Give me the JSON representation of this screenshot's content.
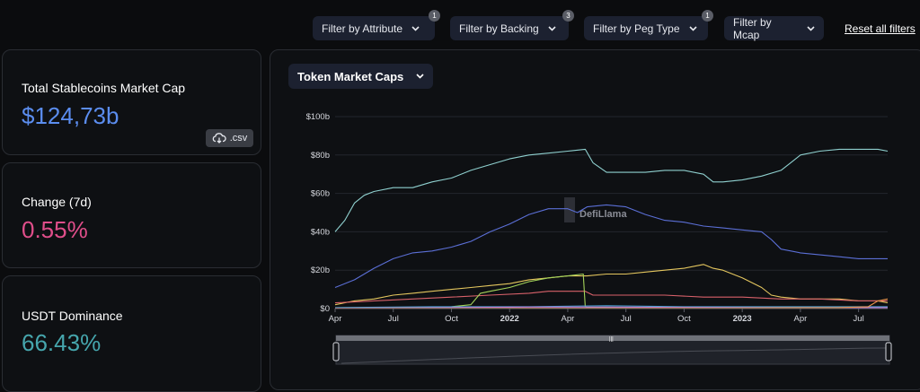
{
  "filters": [
    {
      "label": "Filter by Attribute",
      "badge": "1"
    },
    {
      "label": "Filter by Backing",
      "badge": "3"
    },
    {
      "label": "Filter by Peg Type",
      "badge": "1"
    },
    {
      "label": "Filter by Mcap",
      "badge": ""
    }
  ],
  "reset_label": "Reset all filters",
  "cards": {
    "total": {
      "label": "Total Stablecoins Market Cap",
      "value": "$124,73b",
      "csv_label": ".csv",
      "value_color": "#5b8def"
    },
    "change": {
      "label": "Change (7d)",
      "value": "0.55%",
      "value_color": "#e04e8a"
    },
    "dominance": {
      "label": "USDT Dominance",
      "value": "66.43%",
      "value_color": "#46a6ad"
    }
  },
  "chart_select_label": "Token Market Caps",
  "watermark": "DefiLlama",
  "chart_data": {
    "type": "line",
    "title": "Token Market Caps",
    "x_ticks": [
      {
        "label": "Apr",
        "bold": false
      },
      {
        "label": "Jul",
        "bold": false
      },
      {
        "label": "Oct",
        "bold": false
      },
      {
        "label": "2022",
        "bold": true
      },
      {
        "label": "Apr",
        "bold": false
      },
      {
        "label": "Jul",
        "bold": false
      },
      {
        "label": "Oct",
        "bold": false
      },
      {
        "label": "2023",
        "bold": true
      },
      {
        "label": "Apr",
        "bold": false
      },
      {
        "label": "Jul",
        "bold": false
      }
    ],
    "x_range": [
      "2021-04",
      "2023-08"
    ],
    "y_ticks": [
      "$0",
      "$20b",
      "$40b",
      "$60b",
      "$80b",
      "$100b"
    ],
    "ylim": [
      0,
      100
    ],
    "grid": true,
    "series": [
      {
        "color": "#8fd0cf",
        "values": [
          [
            0,
            40
          ],
          [
            0.5,
            46
          ],
          [
            1,
            55
          ],
          [
            1.5,
            59
          ],
          [
            2,
            61
          ],
          [
            3,
            63
          ],
          [
            4,
            63
          ],
          [
            5,
            66
          ],
          [
            6,
            68
          ],
          [
            7,
            72
          ],
          [
            8,
            75
          ],
          [
            9,
            78
          ],
          [
            10,
            80
          ],
          [
            11,
            81
          ],
          [
            12,
            82
          ],
          [
            12.9,
            83
          ],
          [
            13.3,
            76
          ],
          [
            14,
            71
          ],
          [
            15,
            71
          ],
          [
            16,
            71
          ],
          [
            17,
            72
          ],
          [
            18,
            72
          ],
          [
            19,
            70
          ],
          [
            19.5,
            66
          ],
          [
            20,
            66
          ],
          [
            21,
            67
          ],
          [
            22,
            69
          ],
          [
            23,
            72
          ],
          [
            23.5,
            76
          ],
          [
            24,
            80
          ],
          [
            25,
            82
          ],
          [
            26,
            83
          ],
          [
            27,
            83
          ],
          [
            28,
            83
          ],
          [
            28.5,
            82
          ]
        ]
      },
      {
        "color": "#5b6fd6",
        "values": [
          [
            0,
            11
          ],
          [
            1,
            15
          ],
          [
            2,
            21
          ],
          [
            3,
            26
          ],
          [
            4,
            29
          ],
          [
            5,
            30
          ],
          [
            6,
            32
          ],
          [
            7,
            35
          ],
          [
            8,
            40
          ],
          [
            9,
            44
          ],
          [
            10,
            49
          ],
          [
            11,
            52
          ],
          [
            12,
            52
          ],
          [
            12.5,
            50
          ],
          [
            13,
            53
          ],
          [
            14,
            54
          ],
          [
            15,
            53
          ],
          [
            16,
            49
          ],
          [
            17,
            46
          ],
          [
            18,
            45
          ],
          [
            19,
            43
          ],
          [
            20,
            42
          ],
          [
            21,
            41
          ],
          [
            22,
            40
          ],
          [
            22.5,
            36
          ],
          [
            23,
            31
          ],
          [
            24,
            29
          ],
          [
            25,
            28
          ],
          [
            26,
            27
          ],
          [
            27,
            26
          ],
          [
            28,
            26
          ],
          [
            28.5,
            26
          ]
        ]
      },
      {
        "color": "#e4c65e",
        "values": [
          [
            0,
            2
          ],
          [
            1,
            4
          ],
          [
            2,
            5
          ],
          [
            3,
            7
          ],
          [
            4,
            8
          ],
          [
            5,
            9
          ],
          [
            6,
            10
          ],
          [
            7,
            11
          ],
          [
            8,
            12
          ],
          [
            9,
            13
          ],
          [
            10,
            15
          ],
          [
            11,
            16
          ],
          [
            12,
            17
          ],
          [
            13,
            17
          ],
          [
            14,
            18
          ],
          [
            15,
            18
          ],
          [
            16,
            19
          ],
          [
            17,
            20
          ],
          [
            18,
            21
          ],
          [
            19,
            23
          ],
          [
            19.5,
            21
          ],
          [
            20,
            20
          ],
          [
            21,
            16
          ],
          [
            22,
            11
          ],
          [
            22.5,
            7
          ],
          [
            23,
            6
          ],
          [
            24,
            5
          ],
          [
            25,
            5
          ],
          [
            26,
            5
          ],
          [
            27,
            4
          ],
          [
            28,
            4
          ],
          [
            28.5,
            3
          ]
        ]
      },
      {
        "color": "#d8616a",
        "values": [
          [
            0,
            3
          ],
          [
            2,
            4
          ],
          [
            4,
            5
          ],
          [
            6,
            6
          ],
          [
            8,
            7
          ],
          [
            10,
            8
          ],
          [
            11,
            9
          ],
          [
            12,
            9
          ],
          [
            12.9,
            9
          ],
          [
            13.3,
            7
          ],
          [
            15,
            7
          ],
          [
            17,
            7
          ],
          [
            19,
            6
          ],
          [
            21,
            6
          ],
          [
            23,
            5
          ],
          [
            25,
            5
          ],
          [
            27,
            4
          ],
          [
            28.5,
            4
          ]
        ]
      },
      {
        "color": "#a5d45a",
        "values": [
          [
            0,
            0
          ],
          [
            4,
            0.5
          ],
          [
            6,
            1
          ],
          [
            7,
            2
          ],
          [
            7.5,
            8
          ],
          [
            8,
            9
          ],
          [
            9,
            11
          ],
          [
            10,
            14
          ],
          [
            11,
            16
          ],
          [
            12,
            17
          ],
          [
            12.8,
            18
          ],
          [
            12.9,
            1
          ],
          [
            13,
            0.5
          ],
          [
            16,
            0.3
          ],
          [
            20,
            0.2
          ],
          [
            28.5,
            0.2
          ]
        ]
      },
      {
        "color": "#4c9fcf",
        "values": [
          [
            0,
            0.5
          ],
          [
            5,
            1
          ],
          [
            10,
            1
          ],
          [
            14,
            1.5
          ],
          [
            18,
            1
          ],
          [
            22,
            1
          ],
          [
            26,
            1
          ],
          [
            28.5,
            1
          ]
        ]
      },
      {
        "color": "#c27bd4",
        "values": [
          [
            0,
            0.2
          ],
          [
            6,
            0.5
          ],
          [
            10,
            0.8
          ],
          [
            14,
            0.8
          ],
          [
            18,
            0.6
          ],
          [
            22,
            0.5
          ],
          [
            28.5,
            0.5
          ]
        ]
      },
      {
        "color": "#e8924a",
        "values": [
          [
            0,
            0.1
          ],
          [
            10,
            0.2
          ],
          [
            20,
            0.3
          ],
          [
            26,
            0.5
          ],
          [
            27.5,
            1
          ],
          [
            28,
            4
          ],
          [
            28.5,
            5
          ]
        ]
      }
    ]
  }
}
